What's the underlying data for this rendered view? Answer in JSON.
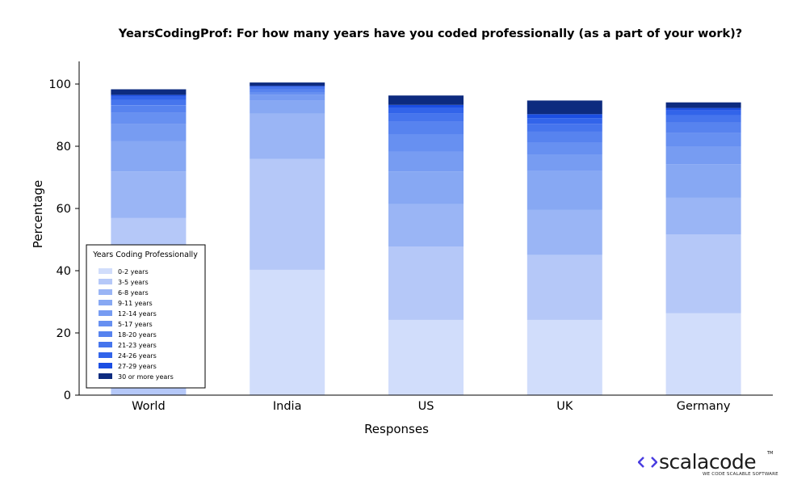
{
  "chart_data": {
    "type": "bar",
    "stacked": true,
    "title": "YearsCodingProf: For how many years have you coded professionally (as a part of your work)?",
    "xlabel": "Responses",
    "ylabel": "Percentage",
    "ylim": [
      0,
      107
    ],
    "yticks": [
      0,
      20,
      40,
      60,
      80,
      100
    ],
    "grid": false,
    "legend": {
      "title": "Years Coding Professionally",
      "placement": "lower-left"
    },
    "categories": [
      "World",
      "India",
      "US",
      "UK",
      "Germany"
    ],
    "series": [
      {
        "name": "0-2 years",
        "color": "#d1ddfb",
        "values": [
          0,
          40.3,
          24.2,
          24.2,
          26.3
        ]
      },
      {
        "name": "3-5 years",
        "color": "#b5c8f8",
        "values": [
          57.0,
          35.6,
          23.6,
          20.8,
          25.3
        ]
      },
      {
        "name": "6-8 years",
        "color": "#9ab5f5",
        "values": [
          14.9,
          14.6,
          13.6,
          14.5,
          11.8
        ]
      },
      {
        "name": "9-11 years",
        "color": "#87a8f3",
        "values": [
          9.8,
          4.2,
          10.5,
          12.5,
          10.8
        ]
      },
      {
        "name": "12-14 years",
        "color": "#779cf2",
        "values": [
          5.4,
          1.7,
          6.3,
          5.4,
          5.8
        ]
      },
      {
        "name": "5-17 years",
        "color": "#6790f1",
        "values": [
          3.6,
          1.0,
          5.7,
          3.9,
          4.2
        ]
      },
      {
        "name": "18-20 years",
        "color": "#5783ef",
        "values": [
          2.5,
          0.8,
          4.0,
          3.5,
          3.4
        ]
      },
      {
        "name": "21-23 years",
        "color": "#4675ed",
        "values": [
          1.7,
          0.6,
          2.6,
          2.3,
          2.3
        ]
      },
      {
        "name": "24-26 years",
        "color": "#3264ea",
        "values": [
          1.0,
          0.4,
          1.8,
          1.9,
          1.6
        ]
      },
      {
        "name": "27-29 years",
        "color": "#1b4ee3",
        "values": [
          0.6,
          0.2,
          1.0,
          1.3,
          0.8
        ]
      },
      {
        "name": "30 or more years",
        "color": "#0d2b7f",
        "values": [
          1.8,
          1.1,
          3.0,
          4.4,
          1.8
        ]
      }
    ]
  },
  "logo": {
    "name": "scalacode",
    "tagline": "WE CODE SCALABLE SOFTWARE",
    "tm": "TM",
    "colors": {
      "chevron": "#4a3ee0",
      "text": "#1b1b1b"
    }
  }
}
